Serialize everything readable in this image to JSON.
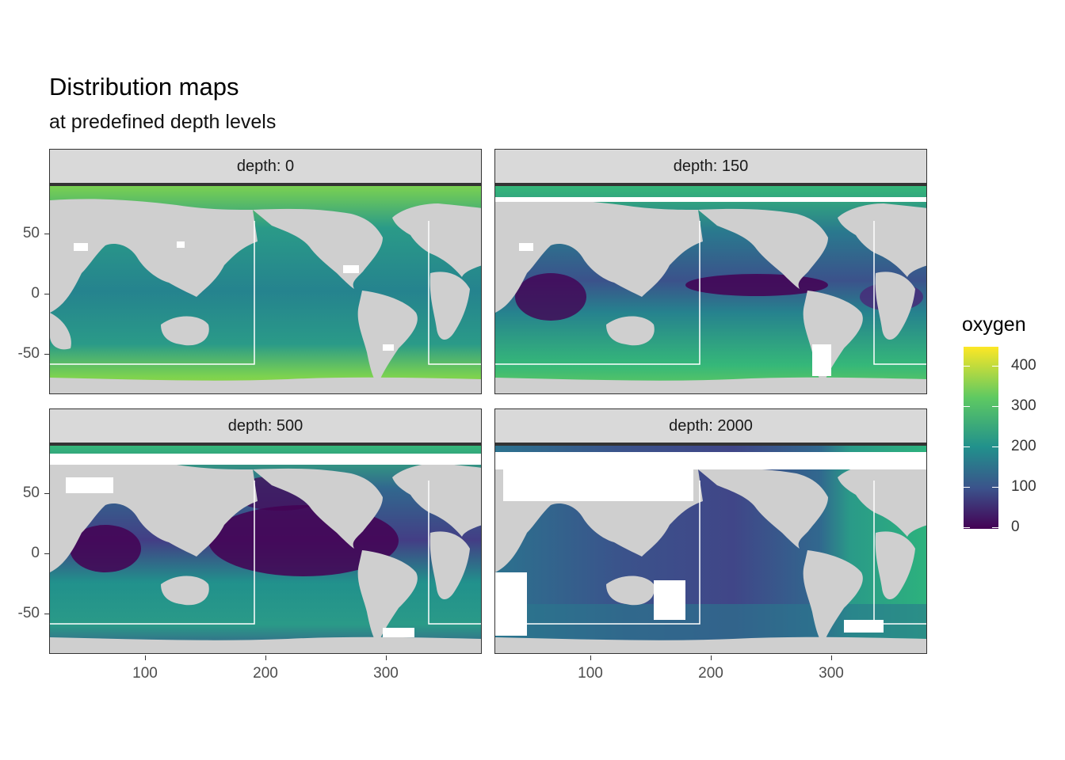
{
  "title": "Distribution maps",
  "subtitle": "at predefined depth levels",
  "panels": [
    {
      "label": "depth: 0",
      "theme": "surface"
    },
    {
      "label": "depth: 150",
      "theme": "d150"
    },
    {
      "label": "depth: 500",
      "theme": "d500"
    },
    {
      "label": "depth: 2000",
      "theme": "d2000"
    }
  ],
  "y_ticks": [
    "50",
    "0",
    "-50"
  ],
  "x_ticks": [
    "100",
    "200",
    "300"
  ],
  "legend": {
    "title": "oxygen",
    "labels": [
      "400",
      "300",
      "200",
      "100",
      "0"
    ],
    "scale": "viridis",
    "range": [
      0,
      450
    ]
  },
  "colors": {
    "land": "#cfcfcf",
    "no_data": "#ffffff",
    "low": "#440154",
    "mid_low": "#3b528b",
    "mid": "#21918c",
    "mid_high": "#5ec962",
    "high": "#fde725"
  },
  "chart_data": {
    "type": "heatmap",
    "variable": "oxygen",
    "facets": [
      "depth: 0",
      "depth: 150",
      "depth: 500",
      "depth: 2000"
    ],
    "xlim": [
      20,
      380
    ],
    "ylim": [
      -85,
      90
    ],
    "x_ticks": [
      100,
      200,
      300
    ],
    "y_ticks": [
      50,
      0,
      -50
    ],
    "color_range": [
      0,
      450
    ]
  }
}
